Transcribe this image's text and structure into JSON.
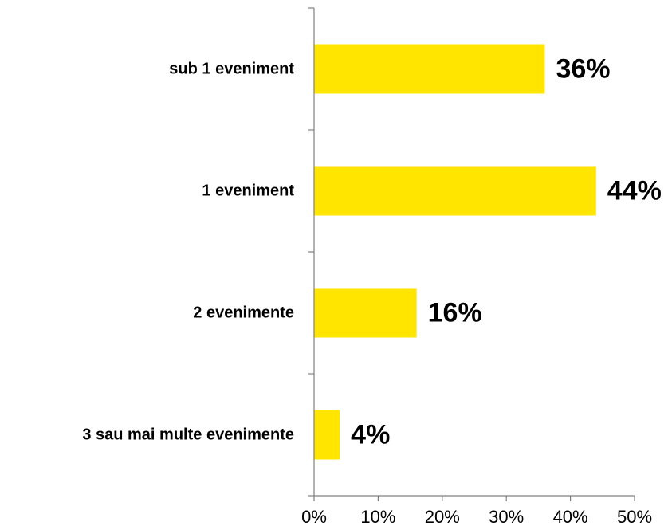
{
  "chart_data": {
    "type": "bar",
    "orientation": "horizontal",
    "title": "",
    "xlabel": "",
    "ylabel": "",
    "categories": [
      "sub 1 eveniment",
      "1 eveniment",
      "2 evenimente",
      "3 sau mai multe evenimente"
    ],
    "values": [
      36,
      44,
      16,
      4
    ],
    "data_labels": [
      "36%",
      "44%",
      "16%",
      "4%"
    ],
    "x_ticks": [
      "0%",
      "10%",
      "20%",
      "30%",
      "40%",
      "50%"
    ],
    "xlim": [
      0,
      50
    ],
    "grid": false,
    "legend": "none",
    "bar_color": "#FFE500"
  }
}
